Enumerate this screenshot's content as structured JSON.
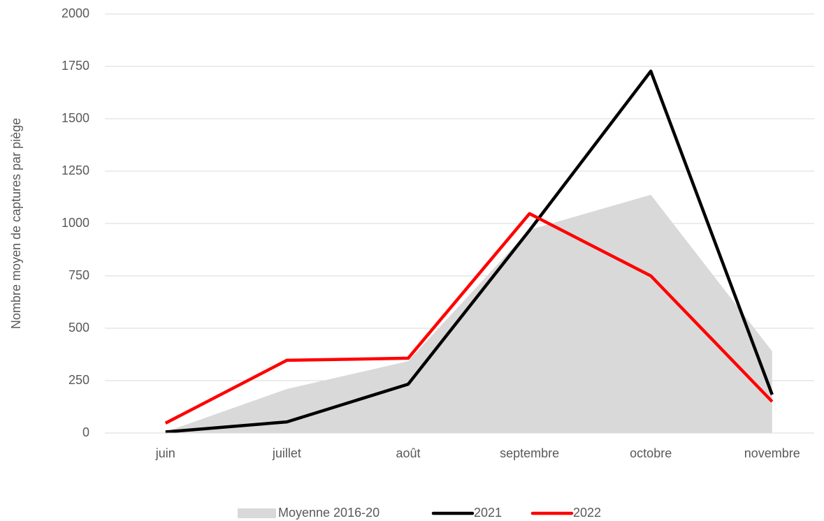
{
  "chart_data": {
    "type": "line",
    "y_label": "Nombre moyen de captures par piège",
    "categories": [
      "juin",
      "juillet",
      "août",
      "septembre",
      "octobre",
      "novembre"
    ],
    "series": [
      {
        "name": "Moyenne 2016-20",
        "style": "area",
        "color": "#d9d9d9",
        "values": [
          5,
          210,
          343,
          970,
          1137,
          390
        ]
      },
      {
        "name": "2021",
        "style": "line",
        "color": "#000000",
        "values": [
          5,
          53,
          233,
          967,
          1727,
          183
        ]
      },
      {
        "name": "2022",
        "style": "line",
        "color": "#ff0000",
        "values": [
          47,
          347,
          357,
          1047,
          750,
          150
        ]
      }
    ],
    "ylim": [
      0,
      2000
    ],
    "yticks": [
      0,
      250,
      500,
      750,
      1000,
      1250,
      1500,
      1750,
      2000
    ],
    "grid": true,
    "legend": "bottom"
  }
}
